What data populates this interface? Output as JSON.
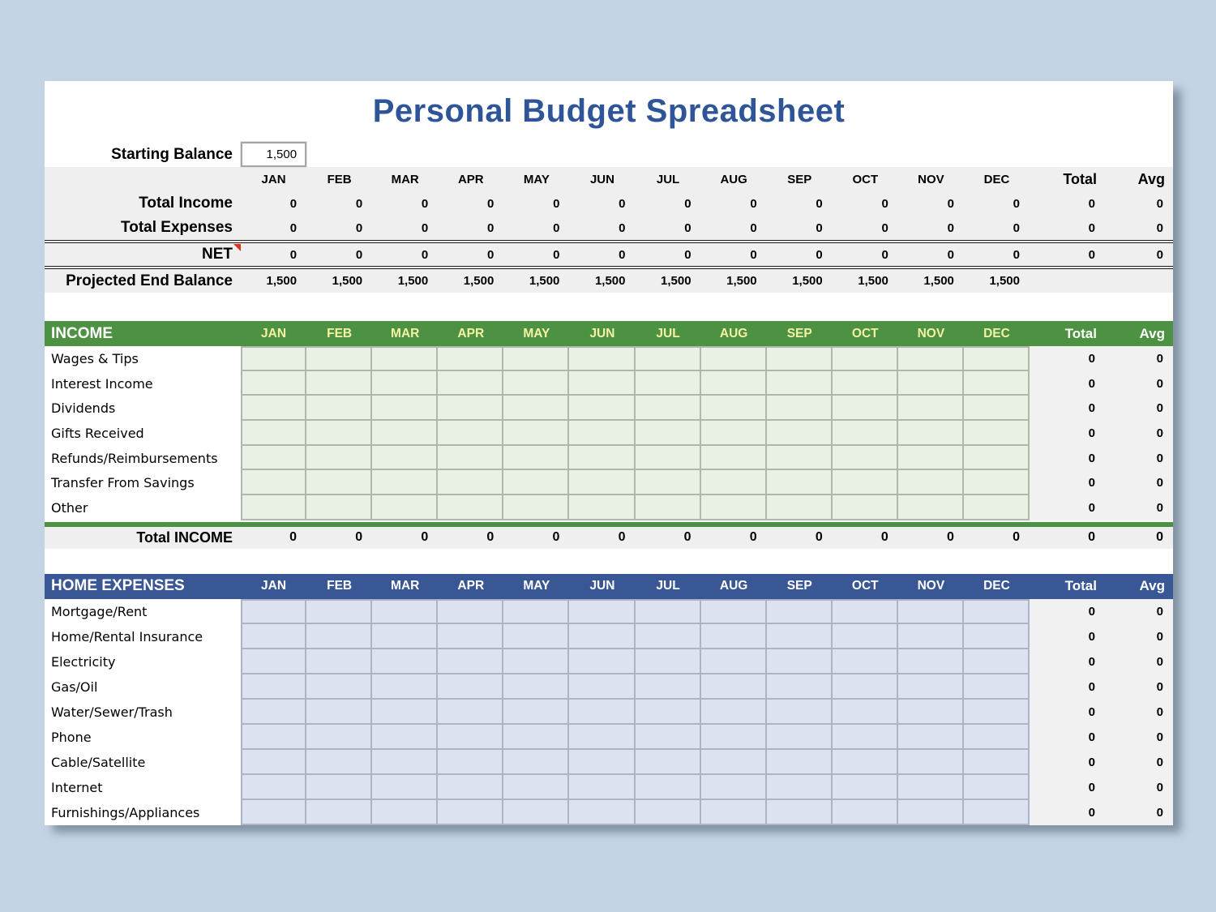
{
  "title": "Personal Budget Spreadsheet",
  "months": [
    "JAN",
    "FEB",
    "MAR",
    "APR",
    "MAY",
    "JUN",
    "JUL",
    "AUG",
    "SEP",
    "OCT",
    "NOV",
    "DEC"
  ],
  "total_header": "Total",
  "avg_header": "Avg",
  "starting_balance": {
    "label": "Starting Balance",
    "value": "1,500"
  },
  "summary": {
    "rows": [
      {
        "label": "Total Income",
        "values": [
          "0",
          "0",
          "0",
          "0",
          "0",
          "0",
          "0",
          "0",
          "0",
          "0",
          "0",
          "0"
        ],
        "total": "0",
        "avg": "0",
        "comment": false
      },
      {
        "label": "Total Expenses",
        "values": [
          "0",
          "0",
          "0",
          "0",
          "0",
          "0",
          "0",
          "0",
          "0",
          "0",
          "0",
          "0"
        ],
        "total": "0",
        "avg": "0",
        "comment": false
      },
      {
        "label": "NET",
        "values": [
          "0",
          "0",
          "0",
          "0",
          "0",
          "0",
          "0",
          "0",
          "0",
          "0",
          "0",
          "0"
        ],
        "total": "0",
        "avg": "0",
        "comment": true
      },
      {
        "label": "Projected End Balance",
        "values": [
          "1,500",
          "1,500",
          "1,500",
          "1,500",
          "1,500",
          "1,500",
          "1,500",
          "1,500",
          "1,500",
          "1,500",
          "1,500",
          "1,500"
        ],
        "total": "",
        "avg": "",
        "comment": false
      }
    ]
  },
  "income": {
    "header": "INCOME",
    "rows": [
      {
        "label": "Wages & Tips",
        "total": "0",
        "avg": "0"
      },
      {
        "label": "Interest Income",
        "total": "0",
        "avg": "0"
      },
      {
        "label": "Dividends",
        "total": "0",
        "avg": "0"
      },
      {
        "label": "Gifts Received",
        "total": "0",
        "avg": "0"
      },
      {
        "label": "Refunds/Reimbursements",
        "total": "0",
        "avg": "0"
      },
      {
        "label": "Transfer From Savings",
        "total": "0",
        "avg": "0"
      },
      {
        "label": "Other",
        "total": "0",
        "avg": "0"
      }
    ],
    "total_row": {
      "label": "Total INCOME",
      "values": [
        "0",
        "0",
        "0",
        "0",
        "0",
        "0",
        "0",
        "0",
        "0",
        "0",
        "0",
        "0"
      ],
      "total": "0",
      "avg": "0"
    }
  },
  "expenses": {
    "header": "HOME EXPENSES",
    "rows": [
      {
        "label": "Mortgage/Rent",
        "total": "0",
        "avg": "0"
      },
      {
        "label": "Home/Rental Insurance",
        "total": "0",
        "avg": "0"
      },
      {
        "label": "Electricity",
        "total": "0",
        "avg": "0"
      },
      {
        "label": "Gas/Oil",
        "total": "0",
        "avg": "0"
      },
      {
        "label": "Water/Sewer/Trash",
        "total": "0",
        "avg": "0"
      },
      {
        "label": "Phone",
        "total": "0",
        "avg": "0"
      },
      {
        "label": "Cable/Satellite",
        "total": "0",
        "avg": "0"
      },
      {
        "label": "Internet",
        "total": "0",
        "avg": "0"
      },
      {
        "label": "Furnishings/Appliances",
        "total": "0",
        "avg": "0"
      }
    ]
  },
  "colors": {
    "page_background": "#C5D4E4",
    "title_text": "#2E5597",
    "summary_band_bg": "#EFEFEF",
    "income_header_bg": "#4D9142",
    "income_header_month_text": "#F2F3A3",
    "income_cell_bg": "#E8F1E4",
    "expenses_header_bg": "#3A5795",
    "expenses_cell_bg": "#DCE2EF",
    "totals_column_bg": "#F1F1F1",
    "comment_marker": "#E0301E"
  }
}
